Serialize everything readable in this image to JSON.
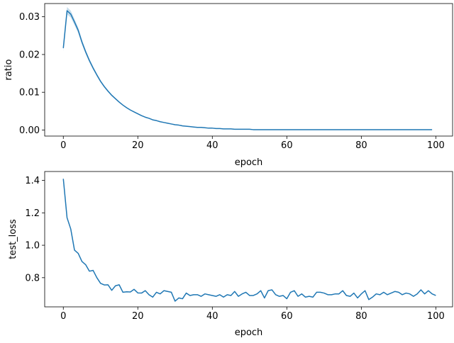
{
  "chart_data": [
    {
      "type": "line",
      "xlabel": "epoch",
      "ylabel": "ratio",
      "xlim": [
        -5,
        104.5
      ],
      "ylim": [
        -0.0016,
        0.0335
      ],
      "xticks": [
        0,
        20,
        40,
        60,
        80,
        100
      ],
      "yticks": [
        0.0,
        0.01,
        0.02,
        0.03
      ],
      "ytick_labels": [
        "0.00",
        "0.01",
        "0.02",
        "0.03"
      ],
      "grid": false,
      "line_color": "#1f77b4",
      "band": true,
      "x_start": 0,
      "x_step": 1,
      "values": [
        0.0217,
        0.0316,
        0.0307,
        0.0286,
        0.0264,
        0.0233,
        0.0207,
        0.0184,
        0.0164,
        0.0146,
        0.0129,
        0.0115,
        0.0103,
        0.0092,
        0.0083,
        0.0074,
        0.0066,
        0.0059,
        0.0053,
        0.0048,
        0.0043,
        0.0038,
        0.0034,
        0.0031,
        0.0027,
        0.0025,
        0.0022,
        0.002,
        0.0018,
        0.0016,
        0.0014,
        0.0013,
        0.0011,
        0.001,
        0.0009,
        0.0008,
        0.0007,
        0.0007,
        0.0006,
        0.0005,
        0.0005,
        0.0004,
        0.0004,
        0.0003,
        0.0003,
        0.0003,
        0.0002,
        0.0002,
        0.0002,
        0.0002,
        0.0002,
        0.0001,
        0.0001,
        0.0001,
        0.0001,
        0.0001,
        0.0001,
        0.0001,
        0.0001,
        0.0001,
        0.0001,
        0.0001,
        0.0001,
        0.0001,
        0.0001,
        0.0001,
        0.0001,
        0.0001,
        0.0001,
        0.0001,
        0.0001,
        0.0001,
        0.0001,
        0.0001,
        0.0001,
        0.0001,
        0.0001,
        0.0001,
        0.0001,
        0.0001,
        0.0001,
        0.0001,
        0.0001,
        0.0001,
        0.0001,
        0.0001,
        0.0001,
        0.0001,
        0.0001,
        0.0001,
        0.0001,
        0.0001,
        0.0001,
        0.0001,
        0.0001,
        0.0001,
        0.0001,
        0.0001,
        0.0001,
        0.0001
      ]
    },
    {
      "type": "line",
      "xlabel": "epoch",
      "ylabel": "test_loss",
      "xlim": [
        -5,
        104.5
      ],
      "ylim": [
        0.62,
        1.455
      ],
      "xticks": [
        0,
        20,
        40,
        60,
        80,
        100
      ],
      "yticks": [
        0.8,
        1.0,
        1.2,
        1.4
      ],
      "ytick_labels": [
        "0.8",
        "1.0",
        "1.2",
        "1.4"
      ],
      "grid": false,
      "line_color": "#1f77b4",
      "band": false,
      "x_start": 0,
      "x_step": 1,
      "values": [
        1.41,
        1.17,
        1.1,
        0.97,
        0.95,
        0.9,
        0.88,
        0.84,
        0.845,
        0.8,
        0.765,
        0.755,
        0.756,
        0.722,
        0.75,
        0.756,
        0.71,
        0.713,
        0.712,
        0.728,
        0.706,
        0.705,
        0.72,
        0.695,
        0.68,
        0.71,
        0.7,
        0.72,
        0.715,
        0.71,
        0.655,
        0.675,
        0.67,
        0.705,
        0.69,
        0.695,
        0.695,
        0.685,
        0.7,
        0.695,
        0.69,
        0.685,
        0.695,
        0.68,
        0.695,
        0.69,
        0.715,
        0.685,
        0.7,
        0.71,
        0.69,
        0.69,
        0.7,
        0.72,
        0.675,
        0.72,
        0.725,
        0.695,
        0.685,
        0.69,
        0.67,
        0.71,
        0.72,
        0.685,
        0.7,
        0.68,
        0.685,
        0.68,
        0.71,
        0.71,
        0.705,
        0.695,
        0.695,
        0.7,
        0.7,
        0.72,
        0.69,
        0.685,
        0.705,
        0.675,
        0.7,
        0.72,
        0.665,
        0.68,
        0.7,
        0.695,
        0.71,
        0.695,
        0.705,
        0.715,
        0.71,
        0.695,
        0.705,
        0.7,
        0.685,
        0.7,
        0.725,
        0.7,
        0.72,
        0.7,
        0.69
      ]
    }
  ]
}
